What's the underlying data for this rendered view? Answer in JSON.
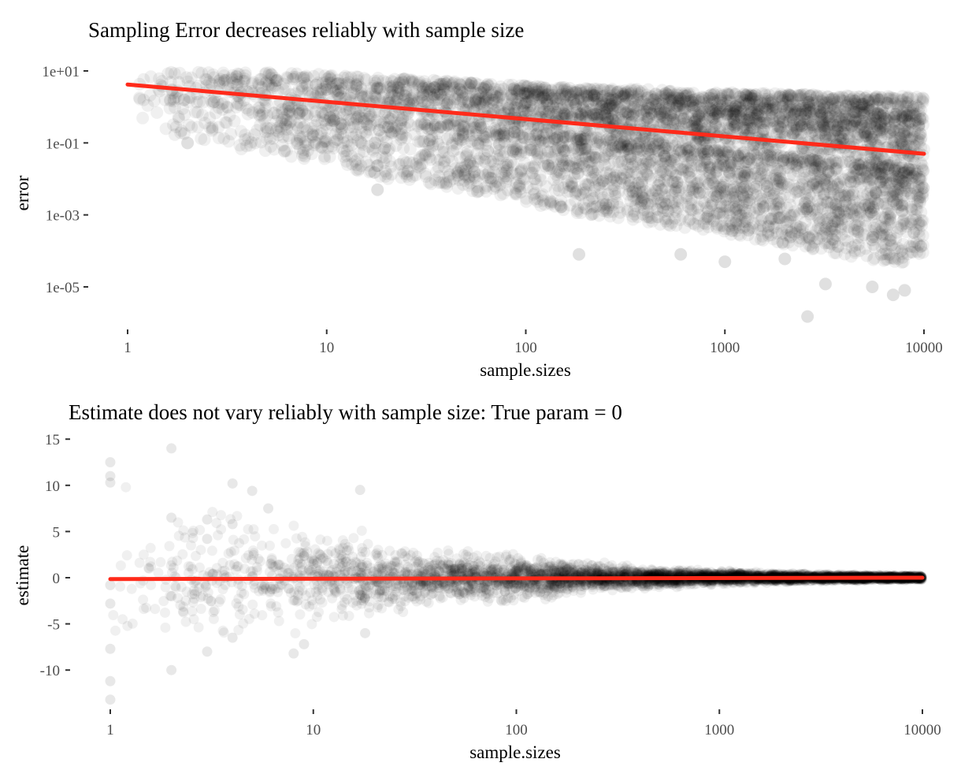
{
  "chart_data": [
    {
      "type": "scatter",
      "title": "Sampling Error decreases reliably with sample size",
      "xlabel": "sample.sizes",
      "ylabel": "error",
      "x_scale": "log10",
      "y_scale": "log10",
      "xlim": [
        1,
        10000
      ],
      "ylim": [
        1.5e-06,
        15
      ],
      "x_ticks": [
        1,
        10,
        100,
        1000,
        10000
      ],
      "x_tick_labels": [
        "1",
        "10",
        "100",
        "1000",
        "10000"
      ],
      "y_ticks": [
        1e-05,
        0.001,
        0.1,
        10
      ],
      "y_tick_labels": [
        "1e-05",
        "1e-03",
        "1e-01",
        "1e+01"
      ],
      "grid": false,
      "point_color": "#000000",
      "point_alpha": 0.06,
      "point_band": {
        "x": [
          1,
          2,
          3,
          5,
          10,
          20,
          50,
          100,
          200,
          500,
          1000,
          2000,
          5000,
          10000
        ],
        "upper": [
          6,
          11,
          9,
          9,
          8,
          6.5,
          5,
          4,
          3.3,
          3,
          2.6,
          2.3,
          2.0,
          2.0
        ],
        "median": [
          2.5,
          1.7,
          1.3,
          1.0,
          0.7,
          0.5,
          0.3,
          0.2,
          0.15,
          0.09,
          0.06,
          0.045,
          0.028,
          0.02
        ],
        "lower": [
          0.5,
          0.1,
          0.08,
          0.05,
          0.03,
          0.01,
          0.005,
          0.002,
          0.001,
          0.0005,
          0.0003,
          0.00015,
          6e-05,
          4e-05
        ]
      },
      "outliers": [
        {
          "x": 2,
          "y": 0.1
        },
        {
          "x": 18,
          "y": 0.005
        },
        {
          "x": 185,
          "y": 8e-05
        },
        {
          "x": 600,
          "y": 8e-05
        },
        {
          "x": 1000,
          "y": 5e-05
        },
        {
          "x": 2000,
          "y": 6e-05
        },
        {
          "x": 2600,
          "y": 1.5e-06
        },
        {
          "x": 3200,
          "y": 1.2e-05
        },
        {
          "x": 5500,
          "y": 1e-05
        },
        {
          "x": 7000,
          "y": 6e-06
        },
        {
          "x": 8000,
          "y": 8e-06
        }
      ],
      "trend_line": {
        "x": [
          1,
          10000
        ],
        "y": [
          4.2,
          0.05
        ],
        "color": "#ff2a1a"
      }
    },
    {
      "type": "scatter",
      "title": "Estimate does not vary reliably with sample size: True param = 0",
      "xlabel": "sample.sizes",
      "ylabel": "estimate",
      "x_scale": "log10",
      "y_scale": "linear",
      "xlim": [
        1,
        10000
      ],
      "ylim": [
        -14,
        16
      ],
      "x_ticks": [
        1,
        10,
        100,
        1000,
        10000
      ],
      "x_tick_labels": [
        "1",
        "10",
        "100",
        "1000",
        "10000"
      ],
      "y_ticks": [
        -10,
        -5,
        0,
        5,
        10,
        15
      ],
      "y_tick_labels": [
        "-10",
        "-5",
        "0",
        "5",
        "10",
        "15"
      ],
      "grid": false,
      "point_color": "#000000",
      "point_alpha": 0.06,
      "point_spread": {
        "x": [
          1,
          2,
          5,
          10,
          20,
          50,
          100,
          200,
          500,
          1000,
          2000,
          5000,
          10000
        ],
        "half_width": [
          12,
          10,
          8,
          6,
          5,
          3.5,
          3,
          2,
          1.2,
          0.9,
          0.6,
          0.4,
          0.3
        ]
      },
      "highlighted_points": [
        {
          "x": 1,
          "y": 12.5
        },
        {
          "x": 1,
          "y": 11
        },
        {
          "x": 1,
          "y": 10.3
        },
        {
          "x": 1,
          "y": -0.8
        },
        {
          "x": 1,
          "y": -2.8
        },
        {
          "x": 1,
          "y": -7.7
        },
        {
          "x": 1,
          "y": -11.2
        },
        {
          "x": 1,
          "y": -13.2
        },
        {
          "x": 2,
          "y": 14
        },
        {
          "x": 2,
          "y": 6.5
        },
        {
          "x": 2,
          "y": -2
        },
        {
          "x": 2,
          "y": -10
        },
        {
          "x": 3,
          "y": 6.3
        },
        {
          "x": 3,
          "y": 4.2
        },
        {
          "x": 3,
          "y": -8
        },
        {
          "x": 4,
          "y": 10.2
        },
        {
          "x": 4,
          "y": 5.8
        },
        {
          "x": 4,
          "y": -6.5
        },
        {
          "x": 5,
          "y": 9.4
        },
        {
          "x": 6,
          "y": 7.5
        },
        {
          "x": 8,
          "y": -8.2
        },
        {
          "x": 9,
          "y": -7.2
        },
        {
          "x": 17,
          "y": 9.5
        },
        {
          "x": 18,
          "y": -6
        }
      ],
      "trend_line": {
        "x": [
          1,
          10000
        ],
        "y": [
          -0.15,
          0.0
        ],
        "color": "#ff2a1a"
      }
    }
  ]
}
